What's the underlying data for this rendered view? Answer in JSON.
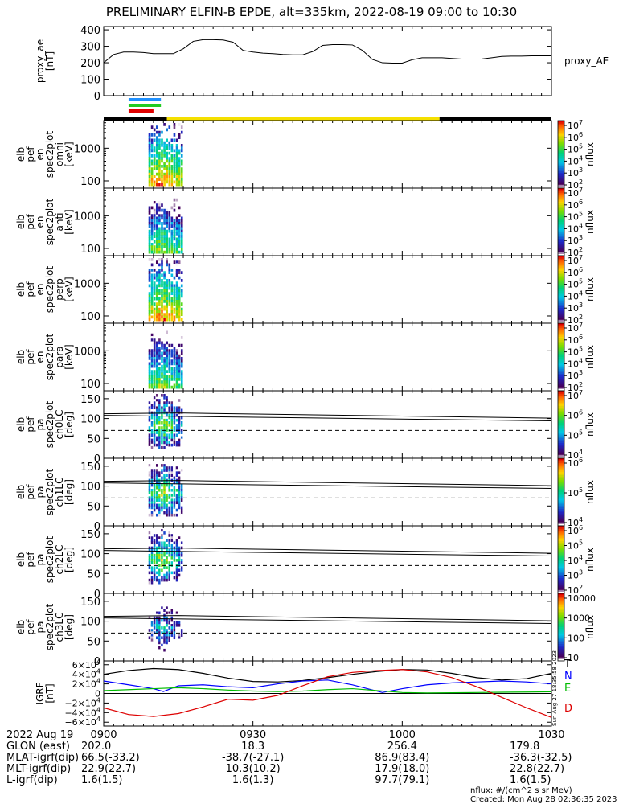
{
  "title": "PRELIMINARY ELFIN-B EPDE, alt=335km, 2022-08-19 09:00 to 10:30",
  "colors": {
    "blue": "#1e90ff",
    "green": "#22cc22",
    "red": "#e00000",
    "yellow": "#f5e000",
    "black": "#000000"
  },
  "x_ticks": [
    "0900",
    "0930",
    "1000",
    "1030"
  ],
  "status_bar": {
    "segments": [
      {
        "from": 0,
        "to": 12.7,
        "color": "black"
      },
      {
        "from": 12.7,
        "to": 67.5,
        "color": "yellow"
      },
      {
        "from": 67.5,
        "to": 90,
        "color": "black"
      }
    ],
    "markers": [
      {
        "from": 5,
        "to": 11.5,
        "color": "blue"
      },
      {
        "from": 5,
        "to": 11.5,
        "color": "green"
      },
      {
        "from": 5,
        "to": 10,
        "color": "red"
      }
    ]
  },
  "chart_data": [
    {
      "type": "line",
      "id": "proxy_ae",
      "ylabel": [
        "proxy_ae",
        "[nT]"
      ],
      "legend": "proxy_AE",
      "ylim": [
        0,
        420
      ],
      "yticks": [
        "0",
        "100",
        "200",
        "300",
        "400"
      ],
      "ytick_values": [
        0,
        100,
        200,
        300,
        400
      ],
      "x_minutes": [
        0,
        2,
        4,
        6,
        8,
        10,
        12,
        14,
        16,
        18,
        20,
        22,
        24,
        26,
        28,
        30,
        32,
        34,
        36,
        38,
        40,
        42,
        44,
        46,
        48,
        50,
        52,
        54,
        56,
        58,
        60,
        62,
        64,
        66,
        68,
        70,
        72,
        74,
        76,
        78,
        80,
        82,
        84,
        86,
        88,
        90
      ],
      "values": [
        200,
        250,
        265,
        265,
        262,
        255,
        255,
        255,
        285,
        330,
        340,
        340,
        338,
        325,
        275,
        265,
        258,
        255,
        250,
        248,
        248,
        268,
        305,
        310,
        310,
        308,
        275,
        220,
        200,
        198,
        198,
        218,
        230,
        230,
        230,
        226,
        222,
        222,
        223,
        230,
        238,
        240,
        240,
        242,
        242,
        242
      ]
    },
    {
      "type": "heatmap",
      "id": "omni",
      "ylabel": [
        "elb",
        "pef",
        "en",
        "spec2plot",
        "omni",
        "[keV]"
      ],
      "yticks": [
        "100",
        "1000"
      ],
      "colorbar": {
        "label": "nflux",
        "scale": "log",
        "range": [
          2,
          7
        ],
        "ticks": [
          "10^7",
          "10^6",
          "10^5",
          "10^4",
          "10^3",
          "10^2"
        ]
      },
      "active_minutes": [
        9,
        16
      ],
      "y_scale": "log keV"
    },
    {
      "type": "heatmap",
      "id": "anti",
      "ylabel": [
        "elb",
        "pef",
        "en",
        "spec2plot",
        "anti",
        "[keV]"
      ],
      "yticks": [
        "100",
        "1000"
      ],
      "colorbar": {
        "label": "nflux",
        "scale": "log",
        "range": [
          2,
          7
        ],
        "ticks": [
          "10^7",
          "10^6",
          "10^5",
          "10^4",
          "10^3",
          "10^2"
        ]
      },
      "active_minutes": [
        9,
        16
      ]
    },
    {
      "type": "heatmap",
      "id": "perp",
      "ylabel": [
        "elb",
        "pef",
        "en",
        "spec2plot",
        "perp",
        "[keV]"
      ],
      "yticks": [
        "100",
        "1000"
      ],
      "colorbar": {
        "label": "nflux",
        "scale": "log",
        "range": [
          2,
          7
        ],
        "ticks": [
          "10^7",
          "10^6",
          "10^5",
          "10^4",
          "10^3",
          "10^2"
        ]
      },
      "active_minutes": [
        9,
        16
      ]
    },
    {
      "type": "heatmap",
      "id": "para",
      "ylabel": [
        "elb",
        "pef",
        "en",
        "spec2plot",
        "para",
        "[keV]"
      ],
      "yticks": [
        "100",
        "1000"
      ],
      "colorbar": {
        "label": "nflux",
        "scale": "log",
        "range": [
          2,
          7
        ],
        "ticks": [
          "10^7",
          "10^6",
          "10^5",
          "10^4",
          "10^3",
          "10^2"
        ]
      },
      "active_minutes": [
        9,
        16
      ]
    },
    {
      "type": "heatmap",
      "id": "ch0LC",
      "ylabel": [
        "elb",
        "pef",
        "pa",
        "spec2plot",
        "ch0LC",
        "[deg]"
      ],
      "yticks": [
        "0",
        "50",
        "100",
        "150"
      ],
      "ytick_values": [
        0,
        50,
        100,
        150
      ],
      "ylim": [
        0,
        170
      ],
      "colorbar": {
        "label": "nflux",
        "scale": "log",
        "range": [
          3.5,
          7
        ],
        "ticks": [
          "10^7",
          "10^6",
          "10^5",
          "10^4"
        ]
      },
      "active_minutes": [
        9,
        16
      ],
      "lc_solid": [
        {
          "x": 0,
          "y": 108
        },
        {
          "x": 90,
          "y": 94
        }
      ],
      "lc_solid2": [
        {
          "x": 0,
          "y": 112
        },
        {
          "x": 15,
          "y": 114
        },
        {
          "x": 90,
          "y": 101
        }
      ],
      "lc_dashed": 70
    },
    {
      "type": "heatmap",
      "id": "ch1LC",
      "ylabel": [
        "elb",
        "pef",
        "pa",
        "spec2plot",
        "ch1LC",
        "[deg]"
      ],
      "yticks": [
        "0",
        "50",
        "100",
        "150"
      ],
      "ytick_values": [
        0,
        50,
        100,
        150
      ],
      "ylim": [
        0,
        170
      ],
      "colorbar": {
        "label": "nflux",
        "scale": "log",
        "range": [
          3.5,
          6.5
        ],
        "ticks": [
          "10^6",
          "10^5",
          "10^4"
        ]
      },
      "active_minutes": [
        9,
        16
      ],
      "lc_solid": [
        {
          "x": 0,
          "y": 108
        },
        {
          "x": 90,
          "y": 94
        }
      ],
      "lc_solid2": [
        {
          "x": 0,
          "y": 112
        },
        {
          "x": 15,
          "y": 114
        },
        {
          "x": 90,
          "y": 101
        }
      ],
      "lc_dashed": 70
    },
    {
      "type": "heatmap",
      "id": "ch2LC",
      "ylabel": [
        "elb",
        "pef",
        "pa",
        "spec2plot",
        "ch2LC",
        "[deg]"
      ],
      "yticks": [
        "0",
        "50",
        "100",
        "150"
      ],
      "ytick_values": [
        0,
        50,
        100,
        150
      ],
      "ylim": [
        0,
        170
      ],
      "colorbar": {
        "label": "nflux",
        "scale": "log",
        "range": [
          2,
          6.5
        ],
        "ticks": [
          "10^6",
          "10^5",
          "10^4",
          "10^3",
          "10^2"
        ]
      },
      "active_minutes": [
        9,
        16
      ],
      "lc_solid": [
        {
          "x": 0,
          "y": 108
        },
        {
          "x": 90,
          "y": 94
        }
      ],
      "lc_solid2": [
        {
          "x": 0,
          "y": 112
        },
        {
          "x": 15,
          "y": 114
        },
        {
          "x": 90,
          "y": 101
        }
      ],
      "lc_dashed": 70
    },
    {
      "type": "heatmap",
      "id": "ch3LC",
      "ylabel": [
        "elb",
        "pef",
        "pa",
        "spec2plot",
        "ch3LC",
        "[deg]"
      ],
      "yticks": [
        "0",
        "50",
        "100",
        "150"
      ],
      "ytick_values": [
        0,
        50,
        100,
        150
      ],
      "ylim": [
        0,
        170
      ],
      "colorbar": {
        "label": "nflux",
        "scale": "log",
        "range": [
          1,
          4
        ],
        "ticks": [
          "10000",
          "1000",
          "100",
          "10"
        ]
      },
      "active_minutes": [
        9,
        16
      ],
      "lc_solid": [
        {
          "x": 0,
          "y": 108
        },
        {
          "x": 90,
          "y": 94
        }
      ],
      "lc_solid2": [
        {
          "x": 0,
          "y": 112
        },
        {
          "x": 15,
          "y": 114
        },
        {
          "x": 90,
          "y": 101
        }
      ],
      "lc_dashed": 70
    },
    {
      "type": "line",
      "id": "igrf",
      "ylabel": [
        "IGRF",
        "[nT]"
      ],
      "ylim": [
        -68000,
        68000
      ],
      "yticks": [
        "6×10^4",
        "4×10^4",
        "2×10^4",
        "0",
        "−2×10^4",
        "−4×10^4",
        "−6×10^4"
      ],
      "ytick_values": [
        60000,
        40000,
        20000,
        0,
        -20000,
        -40000,
        -60000
      ],
      "series": [
        {
          "name": "T",
          "color": "#000000",
          "x": [
            0,
            5,
            10,
            15,
            20,
            25,
            30,
            35,
            40,
            45,
            50,
            55,
            60,
            65,
            70,
            75,
            80,
            85,
            90
          ],
          "y": [
            40000,
            48000,
            52000,
            50000,
            42000,
            32000,
            25000,
            24000,
            27000,
            33000,
            40000,
            46000,
            50000,
            49000,
            42000,
            33000,
            28000,
            31000,
            42000
          ]
        },
        {
          "name": "N",
          "color": "#0000ff",
          "x": [
            0,
            5,
            10,
            12,
            15,
            20,
            25,
            30,
            35,
            40,
            45,
            50,
            53,
            56,
            60,
            65,
            70,
            75,
            80,
            85,
            90
          ],
          "y": [
            26000,
            18000,
            10000,
            4000,
            16000,
            18000,
            14000,
            12000,
            20000,
            26000,
            28000,
            18000,
            10000,
            2000,
            10000,
            18000,
            22000,
            24000,
            26000,
            24000,
            20000
          ]
        },
        {
          "name": "E",
          "color": "#00bb00",
          "x": [
            0,
            5,
            10,
            15,
            20,
            25,
            30,
            35,
            40,
            45,
            50,
            55,
            60,
            65,
            70,
            75,
            80,
            85,
            90
          ],
          "y": [
            6000,
            8000,
            10000,
            12000,
            10000,
            7000,
            5000,
            4000,
            5000,
            8000,
            10000,
            6000,
            2000,
            1000,
            1500,
            2000,
            2500,
            3000,
            3500
          ]
        },
        {
          "name": "D",
          "color": "#dd0000",
          "x": [
            0,
            5,
            10,
            15,
            20,
            25,
            30,
            35,
            40,
            45,
            50,
            55,
            60,
            65,
            70,
            75,
            80,
            85,
            90
          ],
          "y": [
            -30000,
            -44000,
            -48000,
            -42000,
            -28000,
            -12000,
            -14000,
            -4000,
            16000,
            35000,
            44000,
            48000,
            50000,
            45000,
            33000,
            14000,
            -8000,
            -30000,
            -50000
          ]
        }
      ]
    }
  ],
  "footer": {
    "date": "2022 Aug 19",
    "rows": [
      {
        "label": "GLON (east)",
        "values": [
          "202.0",
          "18.3",
          "256.4",
          "179.8"
        ]
      },
      {
        "label": "MLAT-igrf(dip)",
        "values": [
          "66.5(-33.2)",
          "-38.7(-27.1)",
          "86.9(83.4)",
          "-36.3(-32.5)"
        ]
      },
      {
        "label": "MLT-igrf(dip)",
        "values": [
          "22.9(22.7)",
          "10.3(10.2)",
          "17.9(18.0)",
          "22.8(22.7)"
        ]
      },
      {
        "label": "L-igrf(dip)",
        "values": [
          "1.6(1.5)",
          "1.6(1.3)",
          "97.7(79.1)",
          "1.6(1.5)"
        ]
      }
    ],
    "units_note": "nflux: #/(cm^2 s sr MeV)",
    "created": "Created: Mon Aug 28 02:36:35 2023",
    "side_stamp": "Sun Aug 27 18:35:58 2023"
  }
}
